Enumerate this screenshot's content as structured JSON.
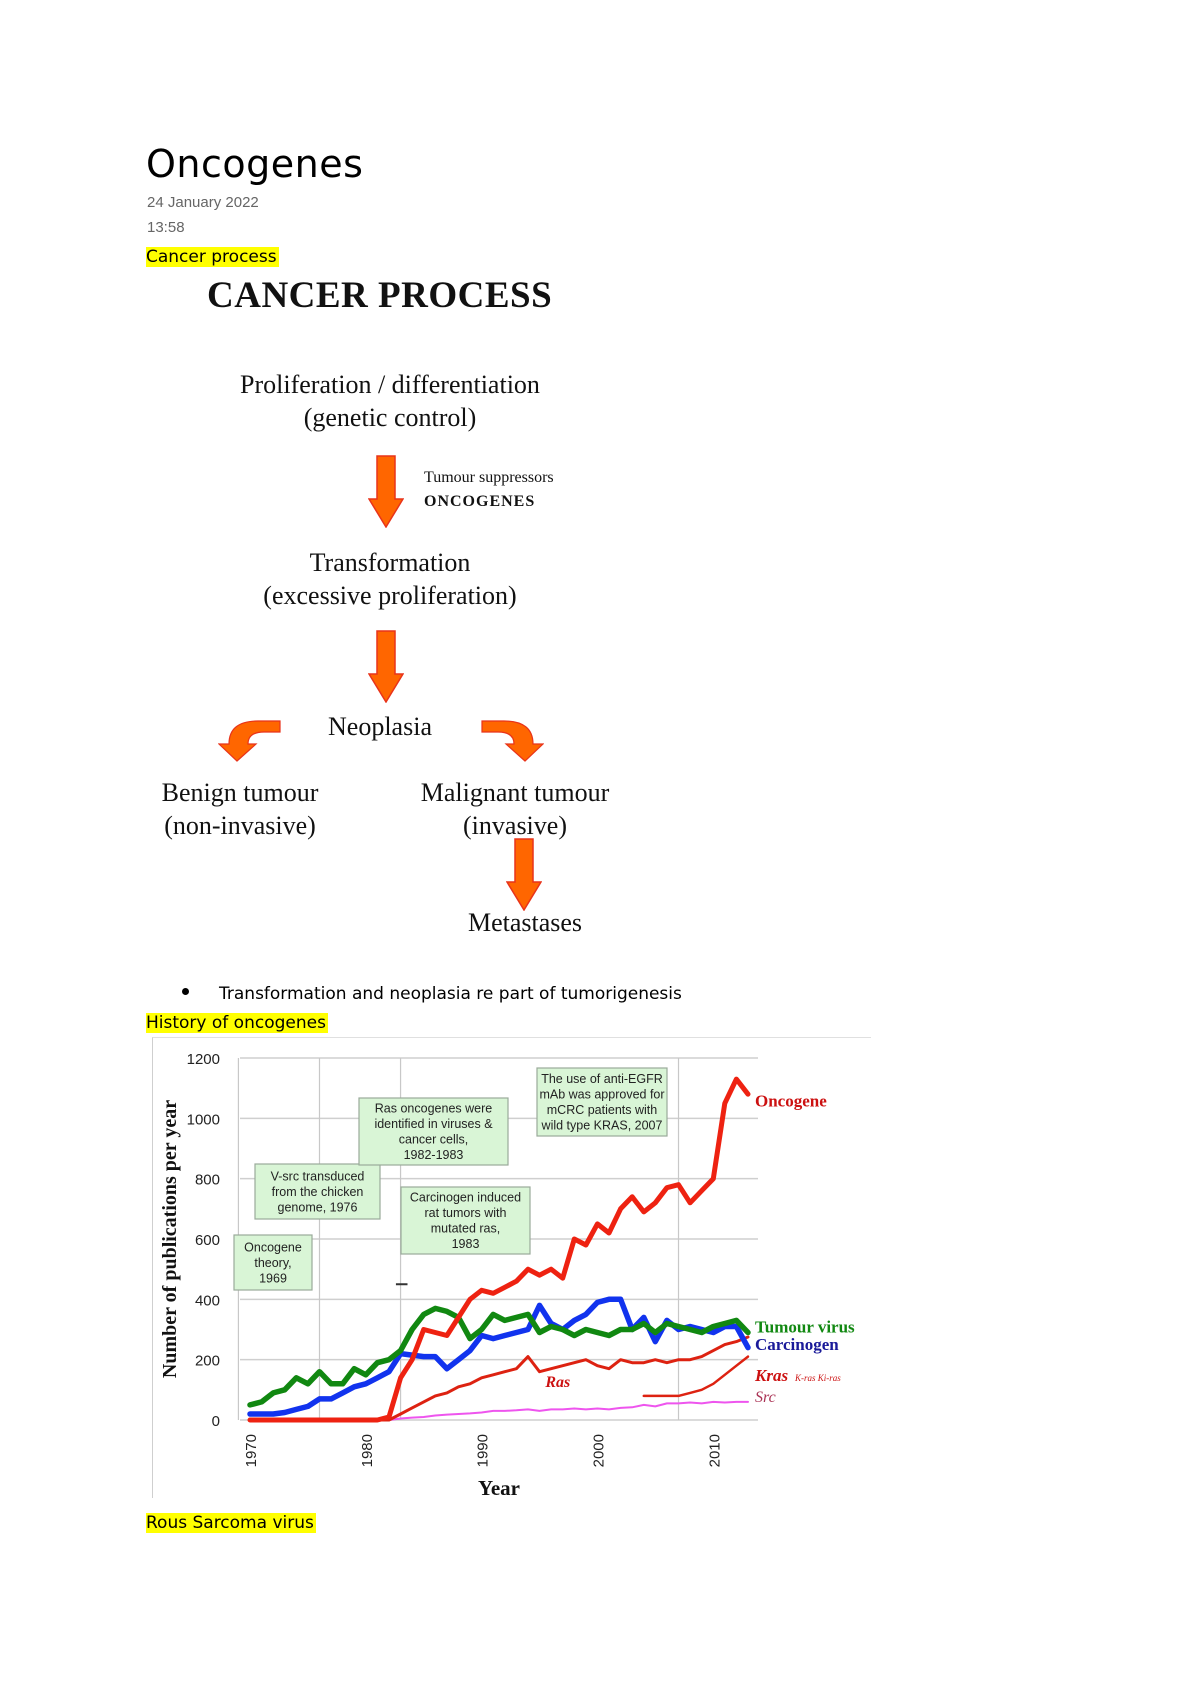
{
  "page": {
    "title": "Oncogenes",
    "date": "24 January 2022",
    "time": "13:58"
  },
  "sections": [
    {
      "heading": "Cancer process"
    },
    {
      "heading": "History of oncogenes"
    },
    {
      "heading": "Rous Sarcoma virus"
    }
  ],
  "diagram": {
    "title": "CANCER PROCESS",
    "nodes": {
      "proliferation_line1": "Proliferation / differentiation",
      "proliferation_line2": "(genetic control)",
      "transformation_line1": "Transformation",
      "transformation_line2": "(excessive proliferation)",
      "neoplasia": "Neoplasia",
      "benign_line1": "Benign tumour",
      "benign_line2": "(non-invasive)",
      "malignant_line1": "Malignant tumour",
      "malignant_line2": "(invasive)",
      "metastases": "Metastases"
    },
    "arrow_note": {
      "line1": "Tumour suppressors",
      "line2": "ONCOGENES"
    },
    "arrow_color": "#ff6600",
    "arrow_outline": "#e8331a"
  },
  "bullets": [
    "Transformation and neoplasia re part of tumorigenesis"
  ],
  "chart_data": {
    "type": "line",
    "title": "",
    "xlabel": "Year",
    "ylabel": "Number of publications per year",
    "xlim": [
      1970,
      2013
    ],
    "ylim": [
      0,
      1200
    ],
    "xticks": [
      "1970",
      "1980",
      "1990",
      "2000",
      "2010"
    ],
    "yticks": [
      "0",
      "200",
      "400",
      "600",
      "800",
      "1000",
      "1200"
    ],
    "grid": true,
    "x": [
      1970,
      1971,
      1972,
      1973,
      1974,
      1975,
      1976,
      1977,
      1978,
      1979,
      1980,
      1981,
      1982,
      1983,
      1984,
      1985,
      1986,
      1987,
      1988,
      1989,
      1990,
      1991,
      1992,
      1993,
      1994,
      1995,
      1996,
      1997,
      1998,
      1999,
      2000,
      2001,
      2002,
      2003,
      2004,
      2005,
      2006,
      2007,
      2008,
      2009,
      2010,
      2011,
      2012,
      2013
    ],
    "series": [
      {
        "name": "Oncogene",
        "color": "#ee2211",
        "values": [
          0,
          0,
          0,
          0,
          0,
          0,
          0,
          0,
          0,
          0,
          0,
          0,
          10,
          140,
          200,
          300,
          290,
          280,
          340,
          400,
          430,
          420,
          440,
          460,
          500,
          480,
          500,
          470,
          600,
          580,
          650,
          620,
          700,
          740,
          690,
          720,
          770,
          780,
          720,
          760,
          800,
          1050,
          1130,
          1080
        ]
      },
      {
        "name": "Tumour virus",
        "color": "#118811",
        "values": [
          50,
          60,
          90,
          100,
          140,
          120,
          160,
          120,
          120,
          170,
          150,
          190,
          200,
          230,
          300,
          350,
          370,
          360,
          340,
          270,
          300,
          350,
          330,
          340,
          350,
          290,
          310,
          300,
          280,
          300,
          290,
          280,
          300,
          300,
          320,
          290,
          320,
          310,
          300,
          290,
          310,
          320,
          330,
          290
        ]
      },
      {
        "name": "Carcinogen",
        "color": "#1133ee",
        "values": [
          20,
          20,
          20,
          25,
          35,
          45,
          70,
          70,
          90,
          110,
          120,
          140,
          160,
          220,
          215,
          210,
          210,
          170,
          200,
          230,
          280,
          270,
          280,
          290,
          300,
          380,
          320,
          300,
          330,
          350,
          390,
          400,
          400,
          300,
          340,
          260,
          330,
          300,
          310,
          300,
          290,
          310,
          310,
          240
        ]
      },
      {
        "name": "Ras",
        "color": "#dd2211",
        "values": [
          0,
          0,
          0,
          0,
          0,
          0,
          0,
          0,
          0,
          0,
          0,
          0,
          0,
          20,
          40,
          60,
          80,
          90,
          110,
          120,
          140,
          150,
          160,
          170,
          210,
          160,
          170,
          180,
          190,
          200,
          180,
          170,
          200,
          190,
          190,
          200,
          190,
          200,
          200,
          210,
          230,
          250,
          260,
          275
        ]
      },
      {
        "name": "Kras",
        "color": "#dd2211",
        "values": [
          null,
          null,
          null,
          null,
          null,
          null,
          null,
          null,
          null,
          null,
          null,
          null,
          null,
          null,
          null,
          null,
          null,
          null,
          null,
          null,
          null,
          null,
          null,
          null,
          null,
          null,
          null,
          null,
          null,
          null,
          null,
          null,
          null,
          null,
          80,
          80,
          80,
          80,
          90,
          100,
          120,
          150,
          180,
          210
        ]
      },
      {
        "name": "Src",
        "color": "#ee55ee",
        "values": [
          0,
          0,
          0,
          0,
          0,
          0,
          0,
          0,
          0,
          0,
          0,
          0,
          0,
          5,
          8,
          10,
          15,
          18,
          20,
          22,
          25,
          30,
          30,
          32,
          35,
          30,
          35,
          35,
          38,
          35,
          38,
          35,
          40,
          42,
          50,
          45,
          55,
          55,
          58,
          55,
          60,
          58,
          60,
          60
        ]
      }
    ],
    "legend": [
      {
        "label": "Oncogene",
        "color": "#cc1111"
      },
      {
        "label": "Tumour virus",
        "color": "#118811"
      },
      {
        "label": "Carcinogen",
        "color": "#1a1a99"
      },
      {
        "label": "Kras",
        "sub": "K-ras Ki-ras",
        "color": "#cc1111"
      },
      {
        "label": "Src",
        "color": "#aa3355"
      }
    ],
    "inline_labels": [
      {
        "label": "Ras",
        "color": "#cc1111"
      }
    ],
    "annotations": [
      {
        "text": [
          "Oncogene",
          "theory,",
          "1969"
        ],
        "year": 1969
      },
      {
        "text": [
          "V-src transduced",
          "from the chicken",
          "genome, 1976"
        ],
        "year": 1976
      },
      {
        "text": [
          "Ras oncogenes were",
          "identified in viruses  &",
          "cancer cells,",
          "1982-1983"
        ],
        "year": 1982
      },
      {
        "text": [
          "Carcinogen induced",
          "rat tumors with",
          "mutated ras,",
          "1983"
        ],
        "year": 1983
      },
      {
        "text": [
          "The use of anti-EGFR",
          "mAb was approved for",
          "mCRC patients with",
          "wild type KRAS, 2007"
        ],
        "year": 2007
      }
    ],
    "annotation_fill": "#d9f5d6",
    "annotation_border": "#9aaa9a"
  }
}
